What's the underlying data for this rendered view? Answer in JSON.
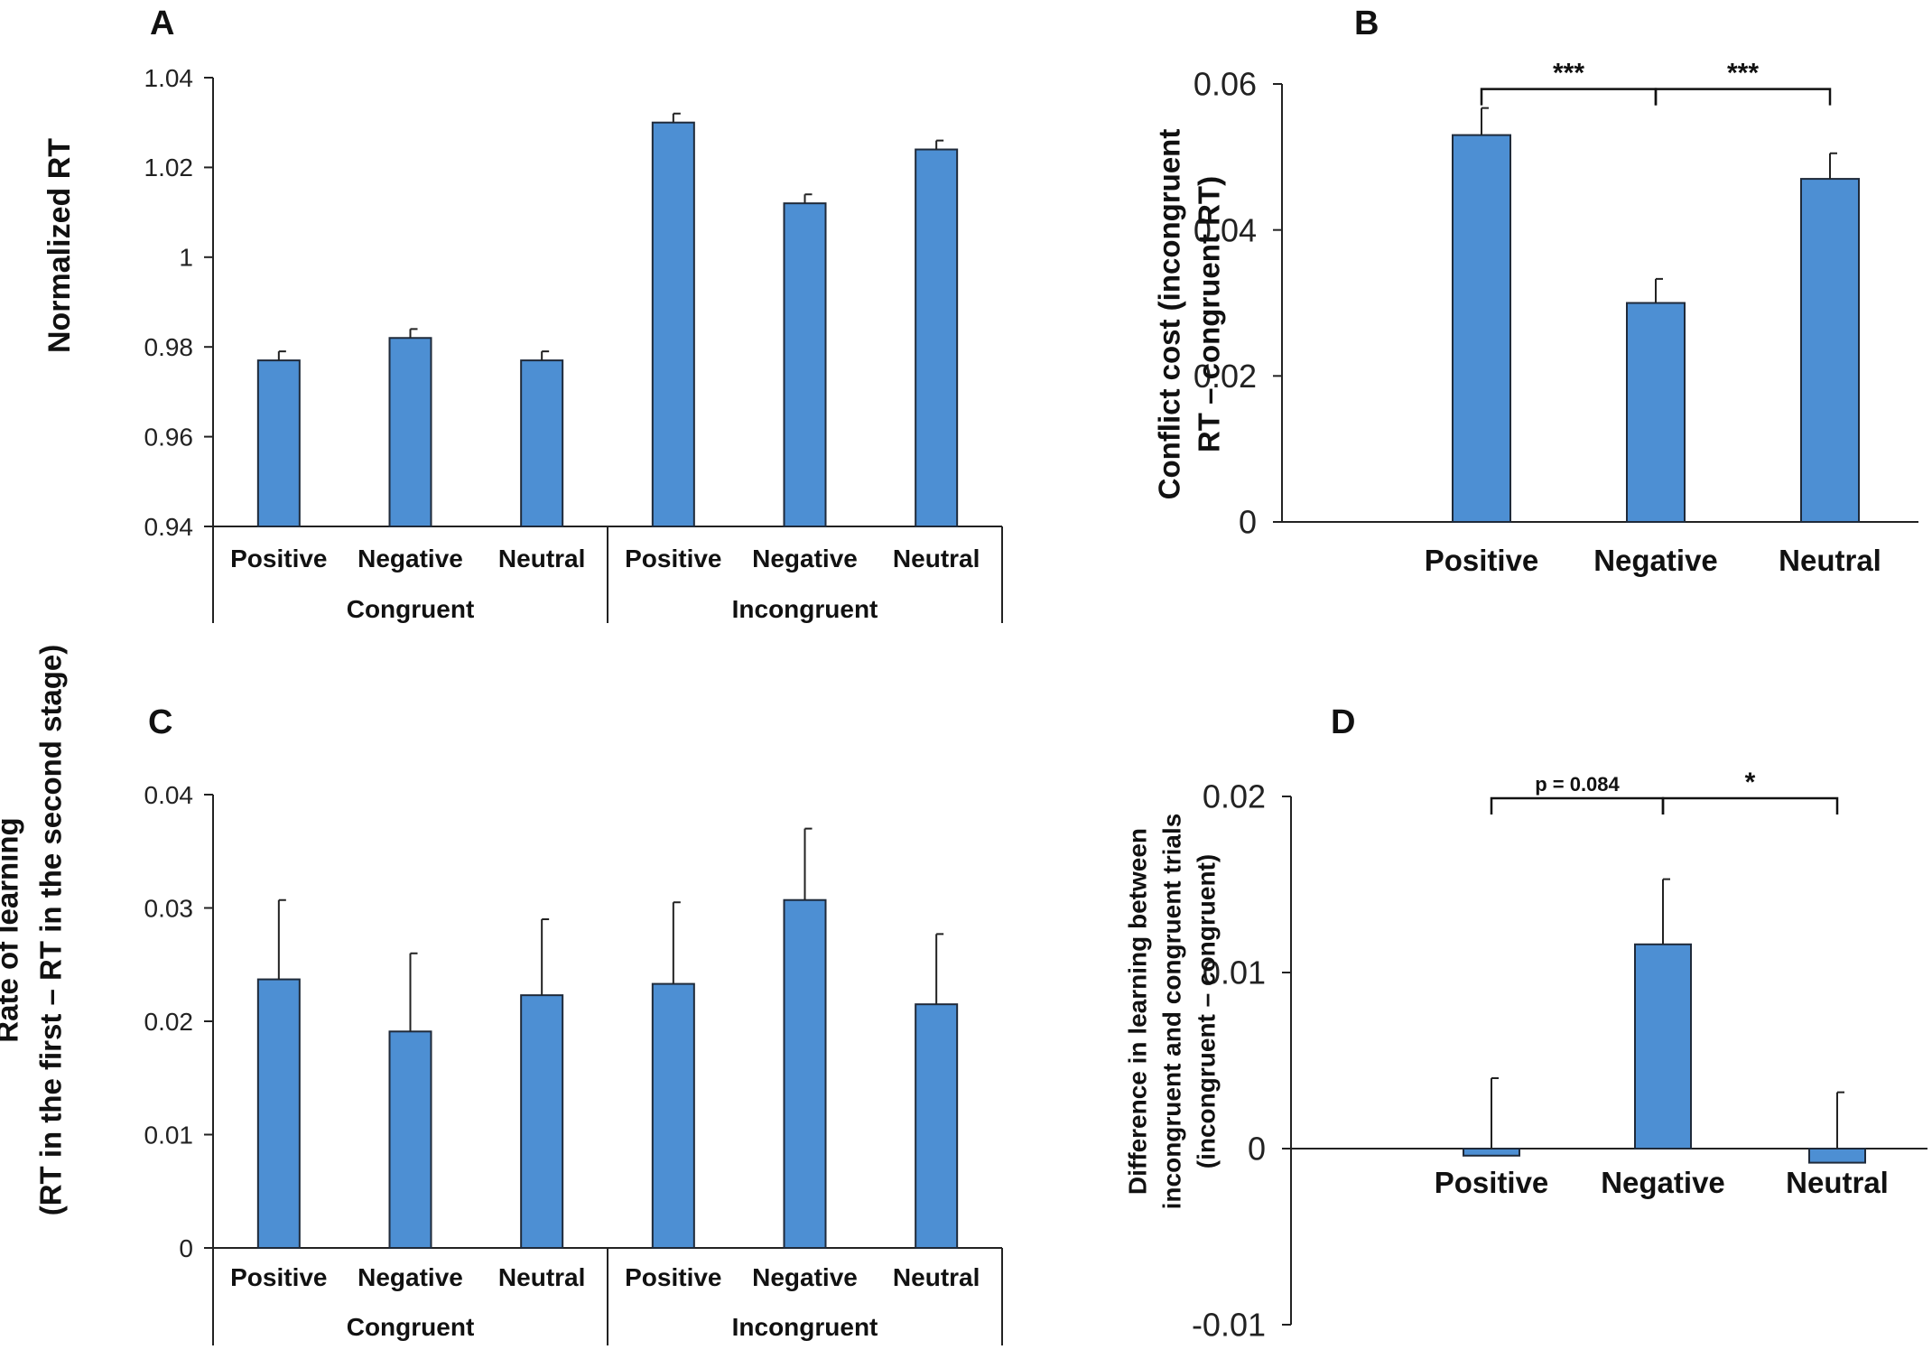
{
  "colors": {
    "bar": "#4d8fd3",
    "axis": "#222222",
    "text": "#111111"
  },
  "chart_data": [
    {
      "panel": "A",
      "type": "bar",
      "ylabel": "Normalized RT",
      "ylim": [
        0.94,
        1.04
      ],
      "yticks": [
        0.94,
        0.96,
        0.98,
        1,
        1.02,
        1.04
      ],
      "ytick_labels": [
        "0.94",
        "0.96",
        "0.98",
        "1",
        "1.02",
        "1.04"
      ],
      "categories": [
        "Positive",
        "Negative",
        "Neutral",
        "Positive",
        "Negative",
        "Neutral"
      ],
      "groups": [
        {
          "label": "Congruent",
          "span": [
            0,
            2
          ]
        },
        {
          "label": "Incongruent",
          "span": [
            3,
            5
          ]
        }
      ],
      "values": [
        0.977,
        0.982,
        0.977,
        1.03,
        1.012,
        1.024
      ],
      "errors": [
        0.002,
        0.002,
        0.002,
        0.002,
        0.002,
        0.002
      ],
      "significance": []
    },
    {
      "panel": "B",
      "type": "bar",
      "ylabel": [
        "Conflict cost (incongruent",
        "RT – congruent RT)"
      ],
      "ylim": [
        0,
        0.06
      ],
      "yticks": [
        0,
        0.02,
        0.04,
        0.06
      ],
      "ytick_labels": [
        "0",
        "0.02",
        "0.04",
        "0.06"
      ],
      "categories": [
        "Positive",
        "Negative",
        "Neutral"
      ],
      "groups": [],
      "values": [
        0.053,
        0.03,
        0.047
      ],
      "errors": [
        0.0037,
        0.0033,
        0.0035
      ],
      "significance": [
        {
          "from": 0,
          "to": 1,
          "label": "***",
          "level": 0.0593
        },
        {
          "from": 1,
          "to": 2,
          "label": "***",
          "level": 0.0593
        }
      ]
    },
    {
      "panel": "C",
      "type": "bar",
      "ylabel": [
        "Rate of learning",
        "(RT in the first – RT in the second stage)"
      ],
      "ylim": [
        0,
        0.04
      ],
      "yticks": [
        0,
        0.01,
        0.02,
        0.03,
        0.04
      ],
      "ytick_labels": [
        "0",
        "0.01",
        "0.02",
        "0.03",
        "0.04"
      ],
      "categories": [
        "Positive",
        "Negative",
        "Neutral",
        "Positive",
        "Negative",
        "Neutral"
      ],
      "groups": [
        {
          "label": "Congruent",
          "span": [
            0,
            2
          ]
        },
        {
          "label": "Incongruent",
          "span": [
            3,
            5
          ]
        }
      ],
      "values": [
        0.0237,
        0.0191,
        0.0223,
        0.0233,
        0.0307,
        0.0215
      ],
      "errors": [
        0.007,
        0.0069,
        0.0067,
        0.0072,
        0.0063,
        0.0062
      ],
      "significance": []
    },
    {
      "panel": "D",
      "type": "bar",
      "ylabel": [
        "Difference in learning between",
        "incongruent and congruent trials",
        "(incongruent – congruent)"
      ],
      "ylim": [
        -0.01,
        0.02
      ],
      "yticks": [
        -0.01,
        0,
        0.01,
        0.02
      ],
      "ytick_labels": [
        "-0.01",
        "0",
        "0.01",
        "0.02"
      ],
      "categories": [
        "Positive",
        "Negative",
        "Neutral"
      ],
      "groups": [],
      "values": [
        -0.0004,
        0.0116,
        -0.0008
      ],
      "errors": [
        0.0044,
        0.0037,
        0.004
      ],
      "significance": [
        {
          "from": 0,
          "to": 1,
          "label": "p = 0.084",
          "level": 0.0199
        },
        {
          "from": 1,
          "to": 2,
          "label": "*",
          "level": 0.0199
        }
      ]
    }
  ]
}
